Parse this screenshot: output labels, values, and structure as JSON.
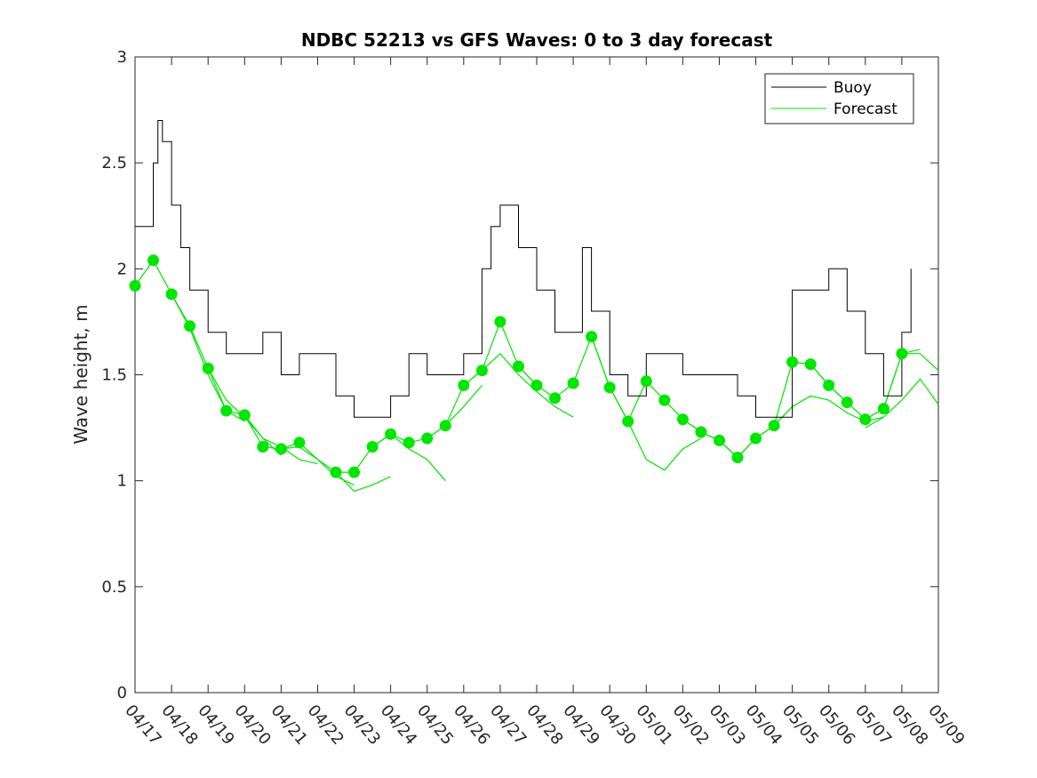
{
  "chart_data": {
    "type": "line",
    "title": "NDBC 52213 vs GFS Waves: 0 to 3 day forecast",
    "xlabel": "",
    "ylabel": "Wave height, m",
    "x_axis": {
      "unit": "day",
      "range": [
        "04/17",
        "05/09"
      ],
      "tick_labels": [
        "04/17",
        "04/18",
        "04/19",
        "04/20",
        "04/21",
        "04/22",
        "04/23",
        "04/24",
        "04/25",
        "04/26",
        "04/27",
        "04/28",
        "04/29",
        "04/30",
        "05/01",
        "05/02",
        "05/03",
        "05/04",
        "05/05",
        "05/06",
        "05/07",
        "05/08",
        "05/09"
      ]
    },
    "y_axis": {
      "range": [
        0,
        3
      ],
      "ticks": [
        0,
        0.5,
        1,
        1.5,
        2,
        2.5,
        3
      ],
      "tick_labels": [
        "0",
        "0.5",
        "1",
        "1.5",
        "2",
        "2.5",
        "3"
      ]
    },
    "grid": false,
    "legend": {
      "placement": "top-right",
      "entries": [
        {
          "label": "Buoy",
          "color": "#000000"
        },
        {
          "label": "Forecast",
          "color": "#00e600"
        }
      ]
    },
    "series": [
      {
        "name": "Buoy",
        "color": "#000000",
        "x": [
          "04/17 00:00",
          "04/17 12:00",
          "04/17 15:00",
          "04/17 18:00",
          "04/18 00:00",
          "04/18 06:00",
          "04/18 12:00",
          "04/19 00:00",
          "04/19 12:00",
          "04/20 00:00",
          "04/20 12:00",
          "04/21 00:00",
          "04/21 12:00",
          "04/22 00:00",
          "04/22 12:00",
          "04/23 00:00",
          "04/23 12:00",
          "04/24 00:00",
          "04/24 12:00",
          "04/25 00:00",
          "04/25 12:00",
          "04/26 00:00",
          "04/26 12:00",
          "04/26 18:00",
          "04/27 00:00",
          "04/27 12:00",
          "04/28 00:00",
          "04/28 12:00",
          "04/29 00:00",
          "04/29 06:00",
          "04/29 12:00",
          "04/30 00:00",
          "04/30 12:00",
          "05/01 00:00",
          "05/01 12:00",
          "05/02 00:00",
          "05/02 12:00",
          "05/03 00:00",
          "05/03 12:00",
          "05/04 00:00",
          "05/04 12:00",
          "05/05 00:00",
          "05/05 12:00",
          "05/06 00:00",
          "05/06 12:00",
          "05/07 00:00",
          "05/07 12:00",
          "05/08 00:00",
          "05/08 06:00"
        ],
        "y": [
          2.2,
          2.5,
          2.7,
          2.6,
          2.3,
          2.1,
          1.9,
          1.7,
          1.6,
          1.6,
          1.7,
          1.5,
          1.6,
          1.6,
          1.4,
          1.3,
          1.3,
          1.4,
          1.6,
          1.5,
          1.5,
          1.6,
          2.0,
          2.2,
          2.3,
          2.1,
          1.9,
          1.7,
          1.7,
          2.1,
          1.8,
          1.5,
          1.4,
          1.6,
          1.6,
          1.5,
          1.5,
          1.5,
          1.4,
          1.3,
          1.3,
          1.9,
          1.9,
          2.0,
          1.8,
          1.6,
          1.4,
          1.7,
          2.0
        ]
      },
      {
        "name": "Forecast",
        "color": "#00e600",
        "marker_x": [
          "04/17 00:00",
          "04/17 12:00",
          "04/18 00:00",
          "04/18 12:00",
          "04/19 00:00",
          "04/19 12:00",
          "04/20 00:00",
          "04/20 12:00",
          "04/21 00:00",
          "04/21 12:00",
          "04/22 12:00",
          "04/23 00:00",
          "04/23 12:00",
          "04/24 00:00",
          "04/24 12:00",
          "04/25 00:00",
          "04/25 12:00",
          "04/26 00:00",
          "04/26 12:00",
          "04/27 00:00",
          "04/27 12:00",
          "04/28 00:00",
          "04/28 12:00",
          "04/29 00:00",
          "04/29 12:00",
          "04/30 00:00",
          "04/30 12:00",
          "05/01 00:00",
          "05/01 12:00",
          "05/02 00:00",
          "05/02 12:00",
          "05/03 00:00",
          "05/03 12:00",
          "05/04 00:00",
          "05/04 12:00",
          "05/05 00:00",
          "05/05 12:00",
          "05/06 00:00",
          "05/06 12:00",
          "05/07 00:00",
          "05/07 12:00",
          "05/08 00:00"
        ],
        "marker_y": [
          1.92,
          2.04,
          1.88,
          1.73,
          1.53,
          1.33,
          1.31,
          1.16,
          1.15,
          1.18,
          1.04,
          1.04,
          1.16,
          1.22,
          1.18,
          1.2,
          1.26,
          1.45,
          1.52,
          1.75,
          1.54,
          1.45,
          1.39,
          1.46,
          1.68,
          1.44,
          1.28,
          1.47,
          1.38,
          1.29,
          1.23,
          1.19,
          1.11,
          1.2,
          1.26,
          1.56,
          1.55,
          1.45,
          1.37,
          1.29,
          1.34,
          1.6
        ],
        "runs": [
          {
            "x": [
              "04/17 00:00",
              "04/17 12:00",
              "04/18 00:00",
              "04/18 12:00",
              "04/19 00:00",
              "04/19 12:00",
              "04/20 00:00"
            ],
            "y": [
              1.92,
              2.04,
              1.88,
              1.72,
              1.5,
              1.33,
              1.28
            ]
          },
          {
            "x": [
              "04/18 00:00",
              "04/18 12:00",
              "04/19 00:00",
              "04/19 12:00",
              "04/20 00:00",
              "04/20 12:00",
              "04/21 00:00"
            ],
            "y": [
              1.88,
              1.73,
              1.53,
              1.38,
              1.3,
              1.2,
              1.12
            ]
          },
          {
            "x": [
              "04/19 00:00",
              "04/19 12:00",
              "04/20 00:00",
              "04/20 12:00",
              "04/21 00:00",
              "04/21 12:00",
              "04/22 00:00"
            ],
            "y": [
              1.53,
              1.33,
              1.31,
              1.2,
              1.16,
              1.1,
              1.08
            ]
          },
          {
            "x": [
              "04/20 00:00",
              "04/20 12:00",
              "04/21 00:00",
              "04/21 12:00",
              "04/22 00:00",
              "04/22 12:00",
              "04/23 00:00"
            ],
            "y": [
              1.31,
              1.16,
              1.15,
              1.16,
              1.1,
              1.02,
              0.98
            ]
          },
          {
            "x": [
              "04/21 00:00",
              "04/21 12:00",
              "04/22 00:00",
              "04/22 12:00",
              "04/23 00:00",
              "04/23 12:00",
              "04/24 00:00"
            ],
            "y": [
              1.15,
              1.18,
              1.1,
              1.04,
              0.95,
              0.98,
              1.02
            ]
          },
          {
            "x": [
              "04/22 12:00",
              "04/23 00:00",
              "04/23 12:00",
              "04/24 00:00",
              "04/24 12:00",
              "04/25 00:00",
              "04/25 12:00"
            ],
            "y": [
              1.04,
              1.04,
              1.16,
              1.22,
              1.15,
              1.1,
              1.0
            ]
          },
          {
            "x": [
              "04/23 12:00",
              "04/24 00:00",
              "04/24 12:00",
              "04/25 00:00",
              "04/25 12:00",
              "04/26 00:00",
              "04/26 12:00"
            ],
            "y": [
              1.16,
              1.22,
              1.18,
              1.2,
              1.26,
              1.35,
              1.45
            ]
          },
          {
            "x": [
              "04/25 00:00",
              "04/25 12:00",
              "04/26 00:00",
              "04/26 12:00",
              "04/27 00:00",
              "04/27 12:00",
              "04/28 00:00"
            ],
            "y": [
              1.2,
              1.26,
              1.45,
              1.52,
              1.75,
              1.54,
              1.45
            ]
          },
          {
            "x": [
              "04/26 00:00",
              "04/26 12:00",
              "04/27 00:00",
              "04/27 12:00",
              "04/28 00:00",
              "04/28 12:00",
              "04/29 00:00"
            ],
            "y": [
              1.45,
              1.52,
              1.6,
              1.5,
              1.42,
              1.35,
              1.3
            ]
          },
          {
            "x": [
              "04/27 12:00",
              "04/28 00:00",
              "04/28 12:00",
              "04/29 00:00",
              "04/29 12:00",
              "04/30 00:00",
              "04/30 12:00"
            ],
            "y": [
              1.54,
              1.45,
              1.39,
              1.46,
              1.68,
              1.44,
              1.28
            ]
          },
          {
            "x": [
              "04/29 12:00",
              "04/30 00:00",
              "04/30 12:00",
              "05/01 00:00",
              "05/01 12:00",
              "05/02 00:00",
              "05/02 12:00"
            ],
            "y": [
              1.68,
              1.44,
              1.28,
              1.1,
              1.05,
              1.15,
              1.2
            ]
          },
          {
            "x": [
              "04/30 12:00",
              "05/01 00:00",
              "05/01 12:00",
              "05/02 00:00",
              "05/02 12:00",
              "05/03 00:00",
              "05/03 12:00"
            ],
            "y": [
              1.28,
              1.47,
              1.38,
              1.29,
              1.23,
              1.19,
              1.11
            ]
          },
          {
            "x": [
              "05/02 00:00",
              "05/02 12:00",
              "05/03 00:00",
              "05/03 12:00",
              "05/04 00:00",
              "05/04 12:00",
              "05/05 00:00"
            ],
            "y": [
              1.29,
              1.23,
              1.19,
              1.11,
              1.2,
              1.26,
              1.35
            ]
          },
          {
            "x": [
              "05/03 12:00",
              "05/04 00:00",
              "05/04 12:00",
              "05/05 00:00",
              "05/05 12:00",
              "05/06 00:00",
              "05/06 12:00"
            ],
            "y": [
              1.11,
              1.2,
              1.26,
              1.56,
              1.55,
              1.45,
              1.37
            ]
          },
          {
            "x": [
              "05/04 12:00",
              "05/05 00:00",
              "05/05 12:00",
              "05/06 00:00",
              "05/06 12:00",
              "05/07 00:00",
              "05/07 12:00"
            ],
            "y": [
              1.26,
              1.35,
              1.4,
              1.38,
              1.32,
              1.28,
              1.3
            ]
          },
          {
            "x": [
              "05/05 12:00",
              "05/06 00:00",
              "05/06 12:00",
              "05/07 00:00",
              "05/07 12:00",
              "05/08 00:00",
              "05/08 12:00"
            ],
            "y": [
              1.55,
              1.45,
              1.37,
              1.29,
              1.34,
              1.6,
              1.62
            ]
          },
          {
            "x": [
              "05/07 00:00",
              "05/07 12:00",
              "05/08 00:00",
              "05/08 12:00",
              "05/09 00:00"
            ],
            "y": [
              1.29,
              1.34,
              1.6,
              1.6,
              1.52
            ]
          },
          {
            "x": [
              "05/07 00:00",
              "05/07 12:00",
              "05/08 00:00",
              "05/08 12:00",
              "05/09 00:00"
            ],
            "y": [
              1.25,
              1.3,
              1.38,
              1.48,
              1.36
            ]
          }
        ]
      }
    ]
  }
}
